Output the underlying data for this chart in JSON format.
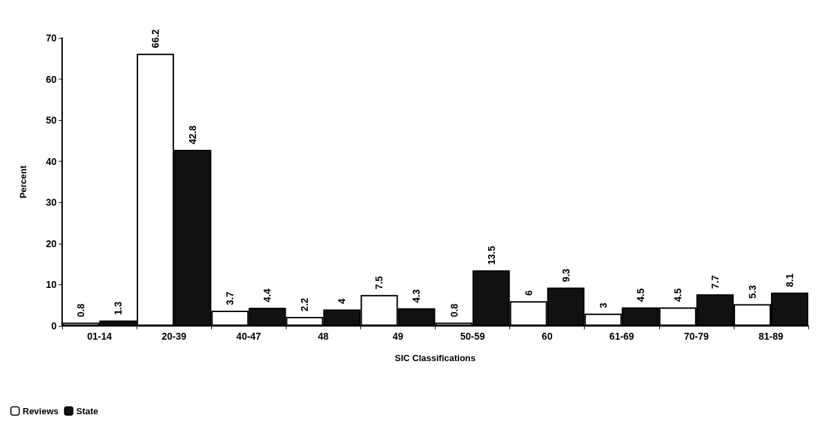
{
  "chart_data": {
    "type": "bar",
    "xlabel": "SIC Classifications",
    "ylabel": "Percent",
    "categories": [
      "01-14",
      "20-39",
      "40-47",
      "48",
      "49",
      "50-59",
      "60",
      "61-69",
      "70-79",
      "81-89"
    ],
    "series": [
      {
        "name": "Reviews",
        "color": "#ffffff",
        "values": [
          0.8,
          66.2,
          3.7,
          2.2,
          7.5,
          0.8,
          6,
          3,
          4.5,
          5.3
        ]
      },
      {
        "name": "State",
        "color": "#111111",
        "values": [
          1.3,
          42.8,
          4.4,
          4,
          4.3,
          13.5,
          9.3,
          4.5,
          7.7,
          8.1
        ]
      }
    ],
    "ylim": [
      0,
      70
    ],
    "yticks": [
      0,
      10,
      20,
      30,
      40,
      50,
      60,
      70
    ],
    "grid": false,
    "legend": "bottom left",
    "data_labels": true
  }
}
